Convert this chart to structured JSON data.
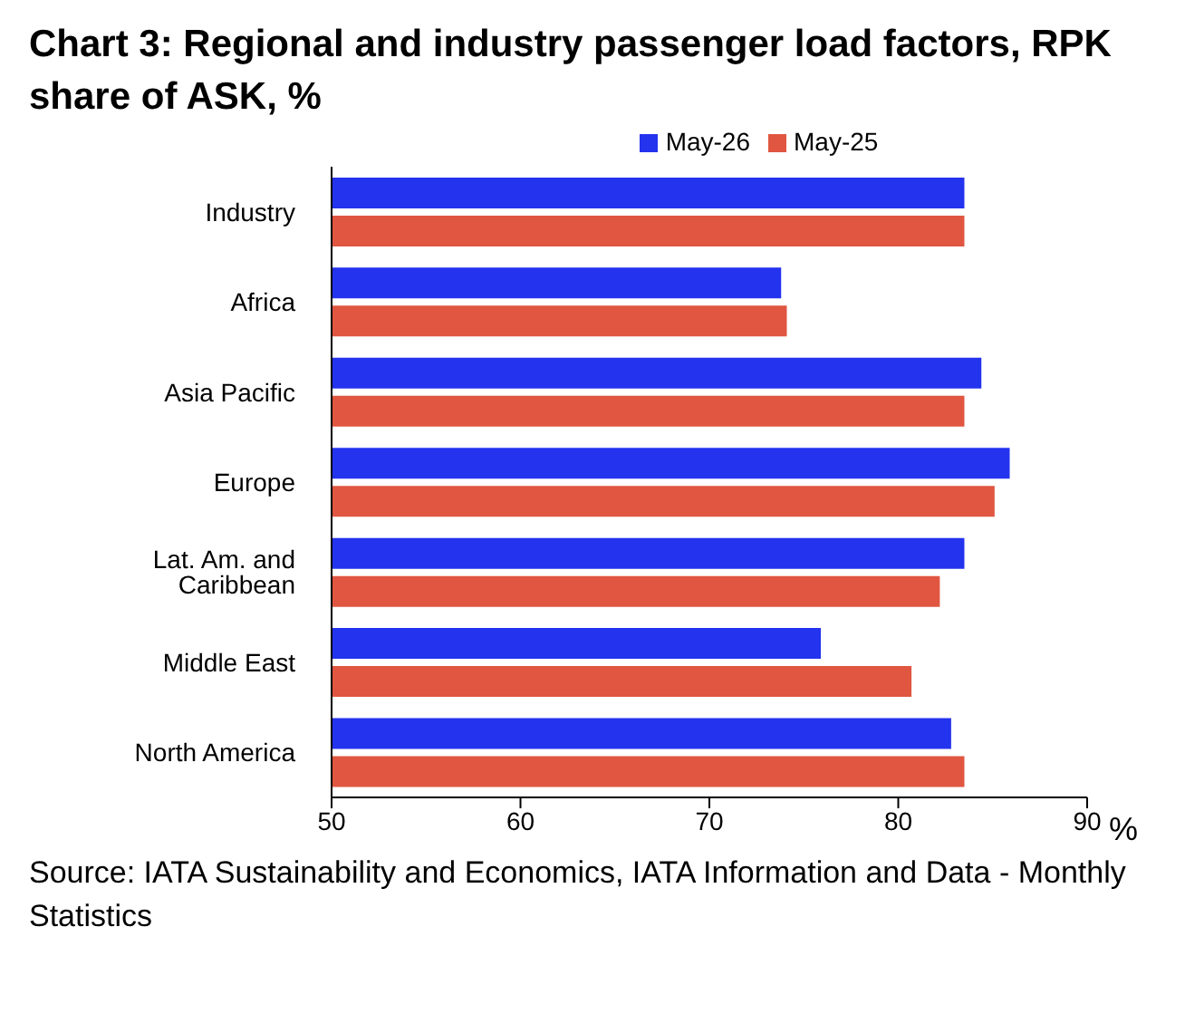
{
  "chart_data": {
    "type": "bar",
    "orientation": "horizontal",
    "title": "Chart 3: Regional and industry passenger load factors, RPK share of ASK, %",
    "xlabel": "%",
    "categories": [
      "Industry",
      "Africa",
      "Asia Pacific",
      "Europe",
      "Lat. Am. and Caribbean",
      "Middle East",
      "North America"
    ],
    "series": [
      {
        "name": "May-26",
        "color": "#2433ee",
        "values": [
          83.5,
          73.8,
          84.4,
          85.9,
          83.5,
          75.9,
          82.8
        ]
      },
      {
        "name": "May-25",
        "color": "#e05641",
        "values": [
          83.5,
          74.1,
          83.5,
          85.1,
          82.2,
          80.7,
          83.5
        ]
      }
    ],
    "xlim": [
      50,
      90
    ],
    "xticks": [
      50,
      60,
      70,
      80,
      90
    ],
    "grid": false,
    "legend": "top",
    "annotations": [
      "Source: IATA Sustainability and Economics, IATA Information and Data - Monthly Statistics"
    ]
  }
}
